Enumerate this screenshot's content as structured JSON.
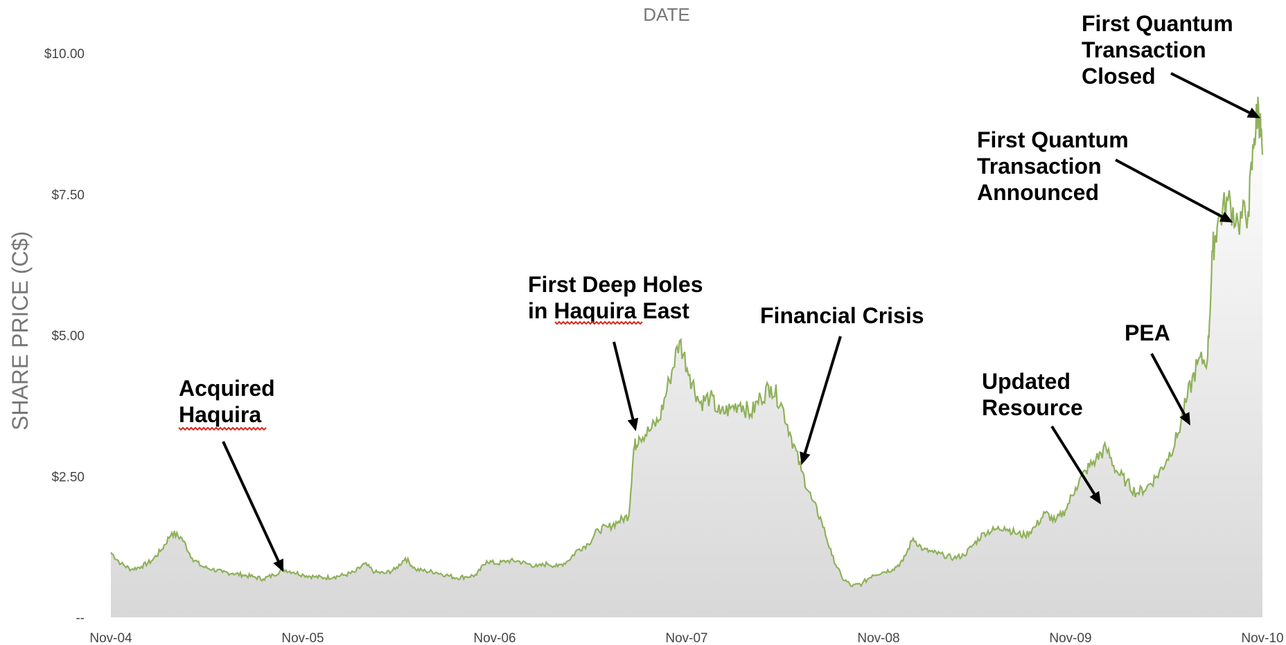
{
  "chart_data": {
    "type": "area",
    "title": "DATE",
    "xlabel": "",
    "ylabel": "SHARE PRICE (C$)",
    "ylim": [
      0,
      10
    ],
    "y_ticks": [
      0,
      2.5,
      5,
      7.5,
      10
    ],
    "y_tick_labels": [
      "--",
      "$2.50",
      "$5.00",
      "$7.50",
      "$10.00"
    ],
    "x_tick_labels": [
      "Nov-04",
      "Nov-05",
      "Nov-06",
      "Nov-07",
      "Nov-08",
      "Nov-09",
      "Nov-10"
    ],
    "x_unit": "months since Nov-04",
    "xlim": [
      0,
      72
    ],
    "grid": false,
    "line_color": "#8fb15a",
    "fill_top": "#ffffff",
    "fill_bottom": "#d8d8d8",
    "series": [
      {
        "values": [
          [
            0,
            1.15
          ],
          [
            1,
            0.95
          ],
          [
            2,
            0.85
          ],
          [
            3,
            0.9
          ],
          [
            4,
            1.0
          ],
          [
            5,
            1.2
          ],
          [
            6,
            1.5
          ],
          [
            7,
            1.4
          ],
          [
            8,
            1.05
          ],
          [
            9,
            0.9
          ],
          [
            10,
            0.85
          ],
          [
            11,
            0.8
          ],
          [
            12,
            0.78
          ],
          [
            13,
            0.75
          ],
          [
            14,
            0.72
          ],
          [
            15,
            0.68
          ],
          [
            16,
            0.75
          ],
          [
            17,
            0.85
          ],
          [
            18,
            0.8
          ],
          [
            19,
            0.75
          ],
          [
            20,
            0.72
          ],
          [
            21,
            0.7
          ],
          [
            22,
            0.72
          ],
          [
            23,
            0.75
          ],
          [
            24,
            0.8
          ],
          [
            25,
            0.95
          ],
          [
            26,
            0.8
          ],
          [
            27,
            0.78
          ],
          [
            28,
            0.85
          ],
          [
            29,
            1.05
          ],
          [
            30,
            0.85
          ],
          [
            31,
            0.82
          ],
          [
            32,
            0.8
          ],
          [
            33,
            0.75
          ],
          [
            34,
            0.7
          ],
          [
            35,
            0.72
          ],
          [
            36,
            0.75
          ],
          [
            37,
            1.0
          ],
          [
            38,
            0.95
          ],
          [
            39,
            1.0
          ],
          [
            40,
            1.0
          ],
          [
            41,
            0.95
          ],
          [
            42,
            0.9
          ],
          [
            43,
            0.95
          ],
          [
            44,
            0.9
          ],
          [
            45,
            1.0
          ],
          [
            46,
            1.2
          ],
          [
            47,
            1.3
          ],
          [
            48,
            1.55
          ],
          [
            49,
            1.6
          ],
          [
            50,
            1.7
          ],
          [
            51,
            1.8
          ],
          [
            51.5,
            3.0
          ],
          [
            52,
            3.2
          ],
          [
            53,
            3.3
          ],
          [
            54,
            3.5
          ],
          [
            55,
            4.2
          ],
          [
            56,
            4.9
          ],
          [
            57,
            4.3
          ],
          [
            58,
            3.8
          ],
          [
            59,
            3.9
          ],
          [
            60,
            3.6
          ],
          [
            61,
            3.7
          ],
          [
            62,
            3.8
          ],
          [
            63,
            3.6
          ],
          [
            64,
            3.9
          ],
          [
            65,
            4.1
          ],
          [
            66,
            3.8
          ]
        ],
        "values_after_1": [
          [
            66,
            3.8
          ],
          [
            67,
            3.2
          ],
          [
            68,
            2.6
          ],
          [
            69,
            2.1
          ],
          [
            70,
            1.7
          ],
          [
            71,
            1.1
          ],
          [
            72,
            0.7
          ],
          [
            73,
            0.55
          ],
          [
            74,
            0.6
          ],
          [
            75,
            0.75
          ],
          [
            76,
            0.8
          ],
          [
            77,
            0.85
          ],
          [
            78,
            1.0
          ],
          [
            79,
            1.4
          ],
          [
            80,
            1.2
          ],
          [
            81,
            1.15
          ],
          [
            82,
            1.1
          ],
          [
            83,
            1.05
          ],
          [
            84,
            1.1
          ],
          [
            85,
            1.3
          ],
          [
            86,
            1.5
          ],
          [
            87,
            1.55
          ],
          [
            88,
            1.6
          ],
          [
            89,
            1.5
          ],
          [
            90,
            1.45
          ],
          [
            91,
            1.6
          ],
          [
            92,
            1.85
          ],
          [
            93,
            1.7
          ],
          [
            94,
            1.9
          ],
          [
            95,
            2.3
          ],
          [
            96,
            2.6
          ],
          [
            97,
            2.8
          ],
          [
            98,
            3.0
          ],
          [
            99,
            2.6
          ],
          [
            100,
            2.4
          ],
          [
            101,
            2.2
          ],
          [
            102,
            2.3
          ],
          [
            103,
            2.5
          ],
          [
            104,
            2.8
          ],
          [
            105,
            3.2
          ],
          [
            106,
            3.9
          ],
          [
            107,
            4.5
          ],
          [
            108,
            4.6
          ],
          [
            108.5,
            6.5
          ],
          [
            109,
            7.0
          ],
          [
            110,
            7.4
          ],
          [
            111,
            7.0
          ],
          [
            112,
            7.2
          ],
          [
            112.6,
            8.5
          ],
          [
            113,
            9.1
          ],
          [
            113.4,
            8.2
          ]
        ]
      }
    ],
    "annotations": [
      {
        "lines": [
          "Acquired",
          "Haquira"
        ],
        "target": [
          17,
          0.8
        ]
      },
      {
        "lines": [
          "First Deep Holes",
          "in Haquira East"
        ],
        "target": [
          51.7,
          3.3
        ]
      },
      {
        "lines": [
          "Financial Crisis"
        ],
        "target": [
          68,
          2.7
        ]
      },
      {
        "lines": [
          "Updated",
          "Resource"
        ],
        "target": [
          97.5,
          2.0
        ]
      },
      {
        "lines": [
          "PEA"
        ],
        "target": [
          106.3,
          3.4
        ]
      },
      {
        "lines": [
          "First Quantum",
          "Transaction",
          "Announced"
        ],
        "target": [
          110.5,
          7.0
        ]
      },
      {
        "lines": [
          "First Quantum",
          "Transaction",
          "Closed"
        ],
        "target": [
          113.2,
          8.85
        ]
      }
    ]
  }
}
